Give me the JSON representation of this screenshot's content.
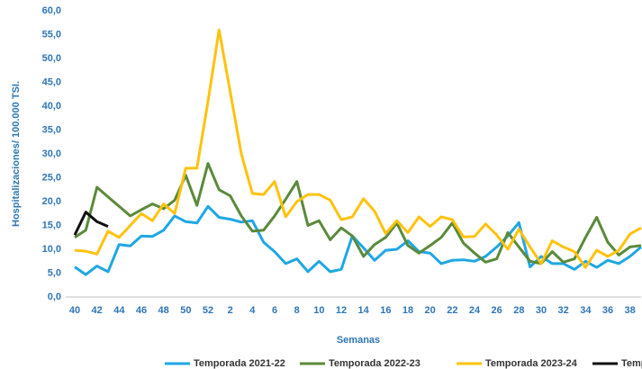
{
  "chart_data": {
    "type": "line",
    "categories": [
      40,
      null,
      42,
      null,
      44,
      null,
      46,
      null,
      48,
      null,
      50,
      null,
      52,
      null,
      2,
      null,
      4,
      null,
      6,
      null,
      8,
      null,
      10,
      null,
      12,
      null,
      14,
      null,
      16,
      null,
      18,
      null,
      20,
      null,
      22,
      null,
      24,
      null,
      26,
      null,
      28,
      null,
      30,
      null,
      32,
      null,
      34,
      null,
      36,
      null,
      38,
      null
    ],
    "x_label": "Semanas",
    "y_label": "Hospitalizaciones/ 100.000 TSI.",
    "ylim": [
      0,
      60
    ],
    "yticks": [
      {
        "value": 0,
        "label": "0,0"
      },
      {
        "value": 5,
        "label": "5,0"
      },
      {
        "value": 10,
        "label": "10,0"
      },
      {
        "value": 15,
        "label": "15,0"
      },
      {
        "value": 20,
        "label": "20,0"
      },
      {
        "value": 25,
        "label": "25,0"
      },
      {
        "value": 30,
        "label": "30,0"
      },
      {
        "value": 35,
        "label": "35,0"
      },
      {
        "value": 40,
        "label": "40,0"
      },
      {
        "value": 45,
        "label": "45,0"
      },
      {
        "value": 50,
        "label": "50,0"
      },
      {
        "value": 55,
        "label": "55,0"
      },
      {
        "value": 60,
        "label": "60,0"
      }
    ],
    "grid": false,
    "series": [
      {
        "name": "Temporada 2021-22",
        "color": "#1ea7e4",
        "values": [
          6.3,
          4.7,
          6.5,
          5.3,
          11,
          10.7,
          12.8,
          12.7,
          14,
          17,
          15.8,
          15.5,
          19,
          16.7,
          16.3,
          15.7,
          16,
          11.5,
          9.5,
          7,
          8,
          5.3,
          7.5,
          5.3,
          5.8,
          12.8,
          10.3,
          7.7,
          9.8,
          10,
          11.8,
          9.5,
          9.2,
          7,
          7.7,
          7.8,
          7.5,
          8.5,
          10.5,
          12.8,
          15.6,
          6.3,
          8.5,
          7,
          7,
          5.8,
          7.5,
          6.2,
          7.7,
          7,
          8.5,
          10.5
        ]
      },
      {
        "name": "Temporada 2022-23",
        "color": "#5a8a3a",
        "values": [
          12.5,
          14,
          23,
          21,
          19,
          17,
          18.3,
          19.5,
          18.5,
          20.3,
          25.5,
          19.2,
          28,
          22.5,
          21.2,
          17,
          13.8,
          14,
          17,
          20.5,
          24.2,
          15,
          16,
          12,
          14.5,
          12.8,
          8.5,
          11,
          12.5,
          15.5,
          10.8,
          9.2,
          10.8,
          12.5,
          15.5,
          11.3,
          9.2,
          7.3,
          8,
          13.5,
          10.5,
          7.5,
          7,
          9.5,
          7.3,
          8,
          12.5,
          16.7,
          11.5,
          8.8,
          10.5,
          10.8
        ]
      },
      {
        "name": "Temporada 2023-24",
        "color": "#ffc20e",
        "values": [
          9.8,
          9.6,
          9,
          13.8,
          12.5,
          15,
          17.5,
          16,
          19.5,
          17.5,
          27,
          27,
          41,
          56,
          43,
          30,
          21.7,
          21.5,
          24.2,
          16.8,
          20,
          21.5,
          21.5,
          20.3,
          16.2,
          16.8,
          20.6,
          18,
          13.3,
          16,
          13.5,
          16.8,
          14.8,
          16.8,
          16.2,
          12.6,
          12.7,
          15.3,
          13,
          10,
          14.2,
          10.5,
          7,
          11.8,
          10.5,
          9.5,
          6.2,
          9.8,
          8.5,
          9.8,
          13.2,
          14.5
        ]
      },
      {
        "name": "Temporad",
        "color": "#111111",
        "values": [
          13,
          17.8,
          15.8,
          14.8,
          null,
          null,
          null,
          null,
          null,
          null,
          null,
          null,
          null,
          null,
          null,
          null,
          null,
          null,
          null,
          null,
          null,
          null,
          null,
          null,
          null,
          null,
          null,
          null,
          null,
          null,
          null,
          null,
          null,
          null,
          null,
          null,
          null,
          null,
          null,
          null,
          null,
          null,
          null,
          null,
          null,
          null,
          null,
          null,
          null,
          null,
          null,
          null
        ]
      }
    ]
  }
}
